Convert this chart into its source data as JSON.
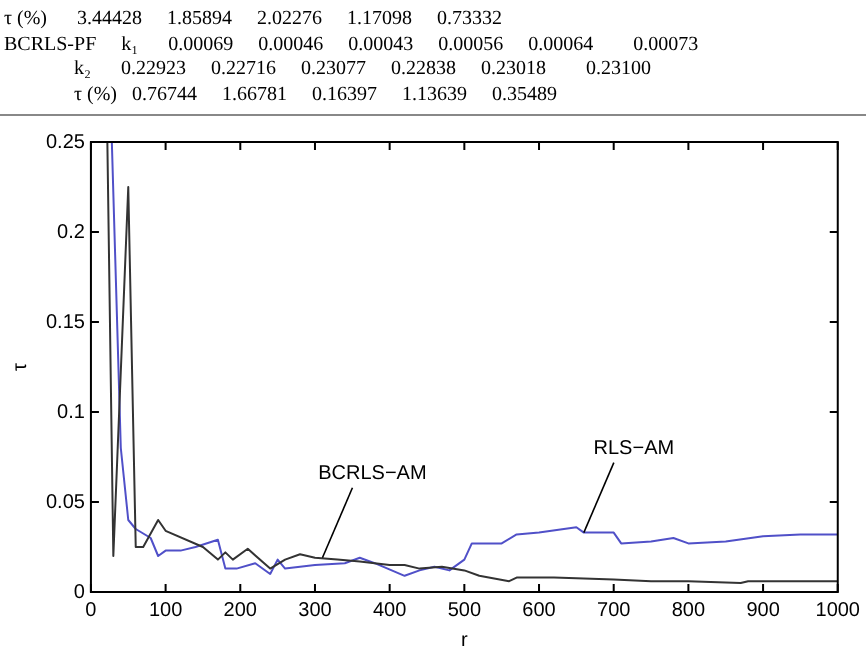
{
  "chart_data": {
    "type": "line",
    "xlabel": "r",
    "ylabel": "τ",
    "xlim": [
      0,
      1000
    ],
    "ylim": [
      0,
      0.25
    ],
    "xticks": [
      0,
      100,
      200,
      300,
      400,
      500,
      600,
      700,
      800,
      900,
      1000
    ],
    "yticks": [
      0,
      0.05,
      0.1,
      0.15,
      0.2,
      0.25
    ],
    "grid": false,
    "legend": false,
    "marker": "none",
    "line_style": "solid",
    "series": [
      {
        "color": "#333333",
        "x": [
          22,
          30,
          50,
          60,
          70,
          90,
          100,
          150,
          170,
          180,
          190,
          210,
          240,
          260,
          280,
          300,
          330,
          360,
          400,
          420,
          440,
          470,
          500,
          520,
          560,
          570,
          620,
          700,
          750,
          800,
          870,
          880,
          1000
        ],
        "values": [
          0.25,
          0.02,
          0.225,
          0.025,
          0.025,
          0.04,
          0.034,
          0.025,
          0.018,
          0.022,
          0.018,
          0.024,
          0.013,
          0.018,
          0.021,
          0.019,
          0.018,
          0.017,
          0.015,
          0.015,
          0.013,
          0.014,
          0.012,
          0.009,
          0.006,
          0.008,
          0.008,
          0.007,
          0.006,
          0.006,
          0.005,
          0.006,
          0.006
        ]
      },
      {
        "color": "#5050c8",
        "x": [
          28,
          40,
          50,
          60,
          80,
          90,
          100,
          120,
          140,
          170,
          180,
          195,
          220,
          240,
          250,
          260,
          300,
          340,
          360,
          380,
          420,
          440,
          460,
          480,
          500,
          510,
          550,
          570,
          600,
          650,
          660,
          700,
          710,
          750,
          780,
          800,
          850,
          900,
          950,
          1000
        ],
        "values": [
          0.25,
          0.08,
          0.04,
          0.035,
          0.03,
          0.02,
          0.023,
          0.023,
          0.025,
          0.029,
          0.013,
          0.013,
          0.016,
          0.01,
          0.018,
          0.013,
          0.015,
          0.016,
          0.019,
          0.016,
          0.009,
          0.012,
          0.014,
          0.012,
          0.018,
          0.027,
          0.027,
          0.032,
          0.033,
          0.036,
          0.033,
          0.033,
          0.027,
          0.028,
          0.03,
          0.027,
          0.028,
          0.031,
          0.032,
          0.032
        ]
      }
    ],
    "annotations": [
      "τ (%)      3.44428     1.85894     2.02276     1.17098     0.73332",
      "BCRLS-PF     k₁      0.00069     0.00046     0.00043     0.00056     0.00064        0.00073",
      "              k₂      0.22923     0.22716     0.23077     0.22838     0.23018        0.23100",
      "              τ (%)   0.76744     1.66781     0.16397     1.13639     0.35489",
      {
        "text": "BCRLS−AM",
        "x": 310,
        "y": 0.019
      },
      {
        "text": "RLS−AM",
        "x": 660,
        "y": 0.033
      }
    ]
  }
}
